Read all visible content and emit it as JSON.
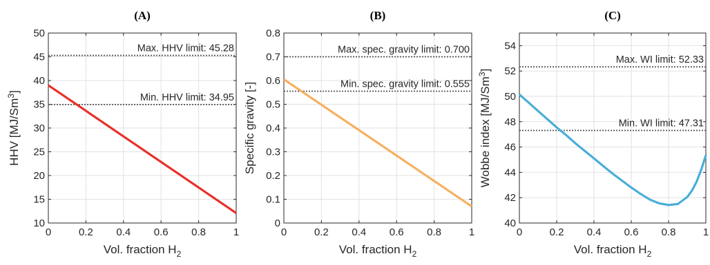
{
  "chart_data": [
    {
      "type": "line",
      "panel": "A",
      "xlabel": "Vol. fraction H",
      "xlabel_sub": "2",
      "ylabel": "HHV [MJ/Sm",
      "ylabel_sup": "3",
      "ylabel_end": "]",
      "xlim": [
        0,
        1
      ],
      "ylim": [
        10,
        50
      ],
      "xticks": [
        "0",
        "0.2",
        "0.4",
        "0.6",
        "0.8",
        "1"
      ],
      "yticks": [
        "10",
        "15",
        "20",
        "25",
        "30",
        "35",
        "40",
        "45",
        "50"
      ],
      "grid": true,
      "series": [
        {
          "color": "#e8302a",
          "x": [
            0,
            1
          ],
          "y": [
            39.0,
            12.1
          ]
        }
      ],
      "limits": [
        {
          "value": 45.28,
          "label": "Max. HHV limit: 45.28"
        },
        {
          "value": 34.95,
          "label": "Min. HHV limit: 34.95"
        }
      ]
    },
    {
      "type": "line",
      "panel": "B",
      "xlabel": "Vol. fraction H",
      "xlabel_sub": "2",
      "ylabel": "Specific gravity [-]",
      "xlim": [
        0,
        1
      ],
      "ylim": [
        0,
        0.8
      ],
      "xticks": [
        "0",
        "0.2",
        "0.4",
        "0.6",
        "0.8",
        "1"
      ],
      "yticks": [
        "0",
        "0.1",
        "0.2",
        "0.3",
        "0.4",
        "0.5",
        "0.6",
        "0.7",
        "0.8"
      ],
      "grid": true,
      "series": [
        {
          "color": "#f6b060",
          "x": [
            0,
            1
          ],
          "y": [
            0.605,
            0.07
          ]
        }
      ],
      "limits": [
        {
          "value": 0.7,
          "label": "Max. spec. gravity limit: 0.700"
        },
        {
          "value": 0.555,
          "label": "Min. spec. gravity limit: 0.555"
        }
      ]
    },
    {
      "type": "line",
      "panel": "C",
      "xlabel": "Vol. fraction H",
      "xlabel_sub": "2",
      "ylabel": "Wobbe index [MJ/Sm",
      "ylabel_sup": "3",
      "ylabel_end": "]",
      "xlim": [
        0,
        1
      ],
      "ylim": [
        40,
        55
      ],
      "xticks": [
        "0",
        "0.2",
        "0.4",
        "0.6",
        "0.8",
        "1"
      ],
      "yticks": [
        "40",
        "42",
        "44",
        "46",
        "48",
        "50",
        "52",
        "54"
      ],
      "grid": true,
      "series": [
        {
          "color": "#4aaed8",
          "x": [
            0,
            0.05,
            0.1,
            0.15,
            0.2,
            0.25,
            0.3,
            0.35,
            0.4,
            0.45,
            0.5,
            0.55,
            0.6,
            0.65,
            0.7,
            0.75,
            0.8,
            0.85,
            0.9,
            0.925,
            0.95,
            0.975,
            1.0
          ],
          "y": [
            50.15,
            49.5,
            48.85,
            48.2,
            47.55,
            46.95,
            46.3,
            45.7,
            45.1,
            44.5,
            43.9,
            43.35,
            42.8,
            42.3,
            41.85,
            41.55,
            41.42,
            41.5,
            42.05,
            42.55,
            43.25,
            44.2,
            45.35
          ]
        }
      ],
      "limits": [
        {
          "value": 52.33,
          "label": "Max. WI limit: 52.33"
        },
        {
          "value": 47.31,
          "label": "Min. WI limit: 47.31"
        }
      ]
    }
  ]
}
